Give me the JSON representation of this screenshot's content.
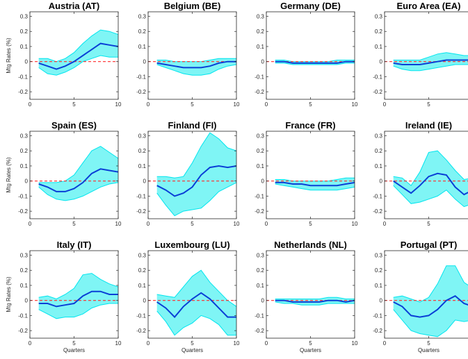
{
  "figure": {
    "ylabel": "Mtg Rates (%)",
    "xlabel": "Quarters"
  },
  "colors": {
    "band": "#7ff5f5",
    "band_edge": "#00e5ee",
    "line": "#0a3fd6",
    "zero": "#ff2a2a",
    "axis": "#262626"
  },
  "chart_data": [
    {
      "type": "line",
      "title": "Austria (AT)",
      "xlim": [
        0,
        10
      ],
      "ylim": [
        -0.25,
        0.33
      ],
      "xticks": [
        0,
        5,
        10
      ],
      "yticks": [
        -0.2,
        -0.1,
        0,
        0.1,
        0.2,
        0.3
      ],
      "xticklabels": [
        "0",
        "5",
        "10"
      ],
      "yticklabels": [
        "-0.2",
        "-0.1",
        "0",
        "0.1",
        "0.2",
        "0.3"
      ],
      "x": [
        1,
        2,
        3,
        4,
        5,
        6,
        7,
        8,
        9,
        10
      ],
      "median": [
        -0.01,
        -0.03,
        -0.05,
        -0.03,
        0.0,
        0.04,
        0.08,
        0.12,
        0.11,
        0.1
      ],
      "upper": [
        0.02,
        0.02,
        0.0,
        0.02,
        0.06,
        0.12,
        0.17,
        0.21,
        0.2,
        0.18
      ],
      "lower": [
        -0.04,
        -0.08,
        -0.09,
        -0.07,
        -0.04,
        0.0,
        0.02,
        0.04,
        0.03,
        0.03
      ]
    },
    {
      "type": "line",
      "title": "Belgium (BE)",
      "xlim": [
        0,
        10
      ],
      "ylim": [
        -0.25,
        0.33
      ],
      "xticks": [
        0,
        5,
        10
      ],
      "yticks": [
        -0.2,
        -0.1,
        0,
        0.1,
        0.2,
        0.3
      ],
      "xticklabels": [
        "0",
        "5",
        "10"
      ],
      "yticklabels": [
        "-0.2",
        "-0.1",
        "0",
        "0.1",
        "0.2",
        "0.3"
      ],
      "x": [
        1,
        2,
        3,
        4,
        5,
        6,
        7,
        8,
        9,
        10
      ],
      "median": [
        -0.01,
        -0.02,
        -0.03,
        -0.04,
        -0.04,
        -0.04,
        -0.03,
        -0.01,
        0.0,
        0.0
      ],
      "upper": [
        0.01,
        0.01,
        0.0,
        0.0,
        0.0,
        0.0,
        0.01,
        0.02,
        0.02,
        0.02
      ],
      "lower": [
        -0.02,
        -0.04,
        -0.06,
        -0.08,
        -0.09,
        -0.09,
        -0.08,
        -0.05,
        -0.03,
        -0.02
      ]
    },
    {
      "type": "line",
      "title": "Germany (DE)",
      "xlim": [
        0,
        10
      ],
      "ylim": [
        -0.25,
        0.33
      ],
      "xticks": [
        0,
        5,
        10
      ],
      "yticks": [
        -0.2,
        -0.1,
        0,
        0.1,
        0.2,
        0.3
      ],
      "xticklabels": [
        "0",
        "5",
        "10"
      ],
      "yticklabels": [
        "-0.2",
        "-0.1",
        "0",
        "0.1",
        "0.2",
        "0.3"
      ],
      "x": [
        1,
        2,
        3,
        4,
        5,
        6,
        7,
        8,
        9,
        10
      ],
      "median": [
        0.0,
        0.0,
        -0.01,
        -0.01,
        -0.01,
        -0.01,
        -0.01,
        -0.01,
        0.0,
        0.0
      ],
      "upper": [
        0.01,
        0.01,
        0.0,
        0.0,
        0.0,
        0.0,
        0.0,
        0.01,
        0.01,
        0.01
      ],
      "lower": [
        -0.01,
        -0.01,
        -0.02,
        -0.02,
        -0.02,
        -0.02,
        -0.02,
        -0.02,
        -0.01,
        -0.01
      ]
    },
    {
      "type": "line",
      "title": "Euro Area (EA)",
      "xlim": [
        0,
        10
      ],
      "ylim": [
        -0.25,
        0.33
      ],
      "xticks": [
        0,
        5,
        10
      ],
      "yticks": [
        -0.2,
        -0.1,
        0,
        0.1,
        0.2,
        0.3
      ],
      "xticklabels": [
        "0",
        "5",
        "10"
      ],
      "yticklabels": [
        "-0.2",
        "-0.1",
        "0",
        "0.1",
        "0.2",
        "0.3"
      ],
      "x": [
        1,
        2,
        3,
        4,
        5,
        6,
        7,
        8,
        9,
        10
      ],
      "median": [
        -0.01,
        -0.02,
        -0.02,
        -0.02,
        -0.01,
        0.0,
        0.01,
        0.01,
        0.01,
        0.01
      ],
      "upper": [
        0.01,
        0.01,
        0.01,
        0.01,
        0.03,
        0.05,
        0.06,
        0.05,
        0.04,
        0.04
      ],
      "lower": [
        -0.03,
        -0.05,
        -0.06,
        -0.06,
        -0.05,
        -0.04,
        -0.03,
        -0.02,
        -0.02,
        -0.02
      ]
    },
    {
      "type": "line",
      "title": "Spain (ES)",
      "xlim": [
        0,
        10
      ],
      "ylim": [
        -0.25,
        0.33
      ],
      "xticks": [
        0,
        5,
        10
      ],
      "yticks": [
        -0.2,
        -0.1,
        0,
        0.1,
        0.2,
        0.3
      ],
      "xticklabels": [
        "0",
        "5",
        "10"
      ],
      "yticklabels": [
        "-0.2",
        "-0.1",
        "0",
        "0.1",
        "0.2",
        "0.3"
      ],
      "x": [
        1,
        2,
        3,
        4,
        5,
        6,
        7,
        8,
        9,
        10
      ],
      "median": [
        -0.02,
        -0.04,
        -0.07,
        -0.07,
        -0.05,
        -0.01,
        0.05,
        0.08,
        0.07,
        0.06
      ],
      "upper": [
        -0.01,
        -0.01,
        -0.01,
        0.0,
        0.04,
        0.12,
        0.2,
        0.23,
        0.19,
        0.15
      ],
      "lower": [
        -0.04,
        -0.09,
        -0.12,
        -0.13,
        -0.12,
        -0.1,
        -0.07,
        -0.04,
        -0.02,
        -0.01
      ]
    },
    {
      "type": "line",
      "title": "Finland (FI)",
      "xlim": [
        0,
        10
      ],
      "ylim": [
        -0.25,
        0.33
      ],
      "xticks": [
        0,
        5,
        10
      ],
      "yticks": [
        -0.2,
        -0.1,
        0,
        0.1,
        0.2,
        0.3
      ],
      "xticklabels": [
        "0",
        "5",
        "10"
      ],
      "yticklabels": [
        "-0.2",
        "-0.1",
        "0",
        "0.1",
        "0.2",
        "0.3"
      ],
      "x": [
        1,
        2,
        3,
        4,
        5,
        6,
        7,
        8,
        9,
        10
      ],
      "median": [
        -0.03,
        -0.06,
        -0.1,
        -0.08,
        -0.04,
        0.04,
        0.09,
        0.1,
        0.09,
        0.1
      ],
      "upper": [
        0.03,
        0.03,
        0.02,
        0.03,
        0.12,
        0.23,
        0.32,
        0.28,
        0.22,
        0.2
      ],
      "lower": [
        -0.08,
        -0.16,
        -0.23,
        -0.2,
        -0.19,
        -0.18,
        -0.13,
        -0.07,
        -0.04,
        -0.01
      ]
    },
    {
      "type": "line",
      "title": "France (FR)",
      "xlim": [
        0,
        10
      ],
      "ylim": [
        -0.25,
        0.33
      ],
      "xticks": [
        0,
        5,
        10
      ],
      "yticks": [
        -0.2,
        -0.1,
        0,
        0.1,
        0.2,
        0.3
      ],
      "xticklabels": [
        "0",
        "5",
        "10"
      ],
      "yticklabels": [
        "-0.2",
        "-0.1",
        "0",
        "0.1",
        "0.2",
        "0.3"
      ],
      "x": [
        1,
        2,
        3,
        4,
        5,
        6,
        7,
        8,
        9,
        10
      ],
      "median": [
        -0.01,
        -0.01,
        -0.02,
        -0.02,
        -0.03,
        -0.03,
        -0.03,
        -0.03,
        -0.02,
        -0.01
      ],
      "upper": [
        0.01,
        0.01,
        0.0,
        0.0,
        0.0,
        0.0,
        0.0,
        0.01,
        0.02,
        0.02
      ],
      "lower": [
        -0.02,
        -0.03,
        -0.04,
        -0.05,
        -0.06,
        -0.06,
        -0.06,
        -0.06,
        -0.05,
        -0.04
      ]
    },
    {
      "type": "line",
      "title": "Ireland (IE)",
      "xlim": [
        0,
        10
      ],
      "ylim": [
        -0.25,
        0.33
      ],
      "xticks": [
        0,
        5,
        10
      ],
      "yticks": [
        -0.2,
        -0.1,
        0,
        0.1,
        0.2,
        0.3
      ],
      "xticklabels": [
        "0",
        "5",
        "10"
      ],
      "yticklabels": [
        "-0.2",
        "-0.1",
        "0",
        "0.1",
        "0.2",
        "0.3"
      ],
      "x": [
        1,
        2,
        3,
        4,
        5,
        6,
        7,
        8,
        9,
        10
      ],
      "median": [
        0.0,
        -0.04,
        -0.08,
        -0.03,
        0.03,
        0.05,
        0.04,
        -0.04,
        -0.09,
        -0.06
      ],
      "upper": [
        0.03,
        0.02,
        -0.03,
        0.06,
        0.19,
        0.2,
        0.14,
        0.07,
        0.01,
        0.02
      ],
      "lower": [
        -0.03,
        -0.09,
        -0.15,
        -0.14,
        -0.12,
        -0.1,
        -0.06,
        -0.12,
        -0.17,
        -0.15
      ]
    },
    {
      "type": "line",
      "title": "Italy (IT)",
      "xlim": [
        0,
        10
      ],
      "ylim": [
        -0.25,
        0.33
      ],
      "xticks": [
        0,
        5,
        10
      ],
      "yticks": [
        -0.2,
        -0.1,
        0,
        0.1,
        0.2,
        0.3
      ],
      "xticklabels": [
        "0",
        "5",
        "10"
      ],
      "yticklabels": [
        "-0.2",
        "-0.1",
        "0",
        "0.1",
        "0.2",
        "0.3"
      ],
      "x": [
        1,
        2,
        3,
        4,
        5,
        6,
        7,
        8,
        9,
        10
      ],
      "median": [
        -0.02,
        -0.02,
        -0.04,
        -0.03,
        -0.02,
        0.03,
        0.06,
        0.06,
        0.04,
        0.04
      ],
      "upper": [
        0.02,
        0.03,
        0.01,
        0.04,
        0.08,
        0.17,
        0.18,
        0.14,
        0.11,
        0.09
      ],
      "lower": [
        -0.06,
        -0.09,
        -0.12,
        -0.11,
        -0.11,
        -0.09,
        -0.05,
        -0.03,
        -0.02,
        -0.02
      ]
    },
    {
      "type": "line",
      "title": "Luxembourg (LU)",
      "xlim": [
        0,
        10
      ],
      "ylim": [
        -0.25,
        0.33
      ],
      "xticks": [
        0,
        5,
        10
      ],
      "yticks": [
        -0.2,
        -0.1,
        0,
        0.1,
        0.2,
        0.3
      ],
      "xticklabels": [
        "0",
        "5",
        "10"
      ],
      "yticklabels": [
        "-0.2",
        "-0.1",
        "0",
        "0.1",
        "0.2",
        "0.3"
      ],
      "x": [
        1,
        2,
        3,
        4,
        5,
        6,
        7,
        8,
        9,
        10
      ],
      "median": [
        -0.01,
        -0.05,
        -0.11,
        -0.04,
        0.01,
        0.05,
        0.01,
        -0.05,
        -0.11,
        -0.11
      ],
      "upper": [
        0.04,
        0.03,
        0.02,
        0.09,
        0.16,
        0.2,
        0.12,
        0.06,
        0.0,
        -0.04
      ],
      "lower": [
        -0.07,
        -0.14,
        -0.23,
        -0.18,
        -0.15,
        -0.1,
        -0.12,
        -0.16,
        -0.23,
        -0.23
      ]
    },
    {
      "type": "line",
      "title": "Netherlands (NL)",
      "xlim": [
        0,
        10
      ],
      "ylim": [
        -0.25,
        0.33
      ],
      "xticks": [
        0,
        5,
        10
      ],
      "yticks": [
        -0.2,
        -0.1,
        0,
        0.1,
        0.2,
        0.3
      ],
      "xticklabels": [
        "0",
        "5",
        "10"
      ],
      "yticklabels": [
        "-0.2",
        "-0.1",
        "0",
        "0.1",
        "0.2",
        "0.3"
      ],
      "x": [
        1,
        2,
        3,
        4,
        5,
        6,
        7,
        8,
        9,
        10
      ],
      "median": [
        0.0,
        0.0,
        -0.01,
        -0.01,
        -0.01,
        -0.01,
        0.0,
        0.0,
        -0.01,
        0.0
      ],
      "upper": [
        0.01,
        0.01,
        0.01,
        0.01,
        0.01,
        0.01,
        0.02,
        0.02,
        0.01,
        0.01
      ],
      "lower": [
        -0.01,
        -0.02,
        -0.02,
        -0.03,
        -0.03,
        -0.03,
        -0.02,
        -0.02,
        -0.02,
        -0.02
      ]
    },
    {
      "type": "line",
      "title": "Portugal (PT)",
      "xlim": [
        0,
        10
      ],
      "ylim": [
        -0.25,
        0.33
      ],
      "xticks": [
        0,
        5,
        10
      ],
      "yticks": [
        -0.2,
        -0.1,
        0,
        0.1,
        0.2,
        0.3
      ],
      "xticklabels": [
        "0",
        "5",
        "10"
      ],
      "yticklabels": [
        "-0.2",
        "-0.1",
        "0",
        "0.1",
        "0.2",
        "0.3"
      ],
      "x": [
        1,
        2,
        3,
        4,
        5,
        6,
        7,
        8,
        9,
        10
      ],
      "median": [
        -0.01,
        -0.04,
        -0.1,
        -0.11,
        -0.1,
        -0.06,
        0.0,
        0.03,
        -0.02,
        -0.04
      ],
      "upper": [
        0.02,
        0.03,
        0.01,
        -0.01,
        0.02,
        0.11,
        0.23,
        0.23,
        0.12,
        0.08
      ],
      "lower": [
        -0.06,
        -0.13,
        -0.2,
        -0.22,
        -0.23,
        -0.24,
        -0.2,
        -0.13,
        -0.14,
        -0.13
      ]
    }
  ]
}
